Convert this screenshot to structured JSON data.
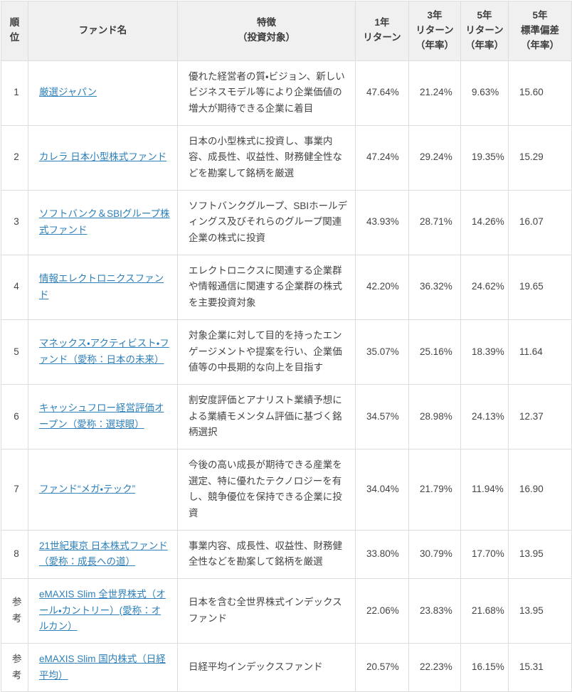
{
  "colors": {
    "header_background": "#f0f0f1",
    "border": "#dddddd",
    "text": "#444444",
    "link": "#2e80b9"
  },
  "table": {
    "headers": [
      "順\n位",
      "ファンド名",
      "特徴\n（投資対象）",
      "1年\nリターン",
      "3年\nリターン\n（年率）",
      "5年\nリターン\n（年率）",
      "5年\n標準偏差\n（年率）"
    ],
    "rows": [
      {
        "rank": "1",
        "fund_name": "厳選ジャパン",
        "feature": "優れた経営者の質・ビジョン、新しいビジネスモデル等により企業価値の増大が期待できる企業に着目",
        "return_1y": "47.64%",
        "return_3y": "21.24%",
        "return_5y": "9.63%",
        "stddev_5y": "15.60"
      },
      {
        "rank": "2",
        "fund_name": "カレラ 日本小型株式ファンド",
        "feature": "日本の小型株式に投資し、事業内容、成長性、収益性、財務健全性などを勘案して銘柄を厳選",
        "return_1y": "47.24%",
        "return_3y": "29.24%",
        "return_5y": "19.35%",
        "stddev_5y": "15.29"
      },
      {
        "rank": "3",
        "fund_name": "ソフトバンク＆SBIグループ株式ファンド",
        "feature": "ソフトバンクグループ、SBIホールディングス及びそれらのグループ関連企業の株式に投資",
        "return_1y": "43.93%",
        "return_3y": "28.71%",
        "return_5y": "14.26%",
        "stddev_5y": "16.07"
      },
      {
        "rank": "4",
        "fund_name": "情報エレクトロニクスファンド",
        "feature": "エレクトロニクスに関連する企業群や情報通信に関連する企業群の株式を主要投資対象",
        "return_1y": "42.20%",
        "return_3y": "36.32%",
        "return_5y": "24.62%",
        "stddev_5y": "19.65"
      },
      {
        "rank": "5",
        "fund_name": "マネックス・アクティビスト・ファンド（愛称：日本の未来）",
        "feature": "対象企業に対して目的を持ったエンゲージメントや提案を行い、企業価値等の中長期的な向上を目指す",
        "return_1y": "35.07%",
        "return_3y": "25.16%",
        "return_5y": "18.39%",
        "stddev_5y": "11.64"
      },
      {
        "rank": "6",
        "fund_name": "キャッシュフロー経営評価オープン（愛称：選球眼）",
        "feature": "割安度評価とアナリスト業績予想による業績モメンタム評価に基づく銘柄選択",
        "return_1y": "34.57%",
        "return_3y": "28.98%",
        "return_5y": "24.13%",
        "stddev_5y": "12.37"
      },
      {
        "rank": "7",
        "fund_name": "ファンド“メガ・テック”",
        "feature": "今後の高い成長が期待できる産業を選定、特に優れたテクノロジーを有し、競争優位を保持できる企業に投資",
        "return_1y": "34.04%",
        "return_3y": "21.79%",
        "return_5y": "11.94%",
        "stddev_5y": "16.90"
      },
      {
        "rank": "8",
        "fund_name": "21世紀東京 日本株式ファンド（愛称：成長への道）",
        "feature": "事業内容、成長性、収益性、財務健全性などを勘案して銘柄を厳選",
        "return_1y": "33.80%",
        "return_3y": "30.79%",
        "return_5y": "17.70%",
        "stddev_5y": "13.95"
      },
      {
        "rank": "参考",
        "fund_name": "eMAXIS Slim 全世界株式（オール・カントリー）(愛称：オルカン）",
        "feature": "日本を含む全世界株式インデックスファンド",
        "return_1y": "22.06%",
        "return_3y": "23.83%",
        "return_5y": "21.68%",
        "stddev_5y": "13.95"
      },
      {
        "rank": "参考",
        "fund_name": "eMAXIS Slim 国内株式（日経平均）",
        "feature": "日経平均インデックスファンド",
        "return_1y": "20.57%",
        "return_3y": "22.23%",
        "return_5y": "16.15%",
        "stddev_5y": "15.31"
      }
    ]
  }
}
